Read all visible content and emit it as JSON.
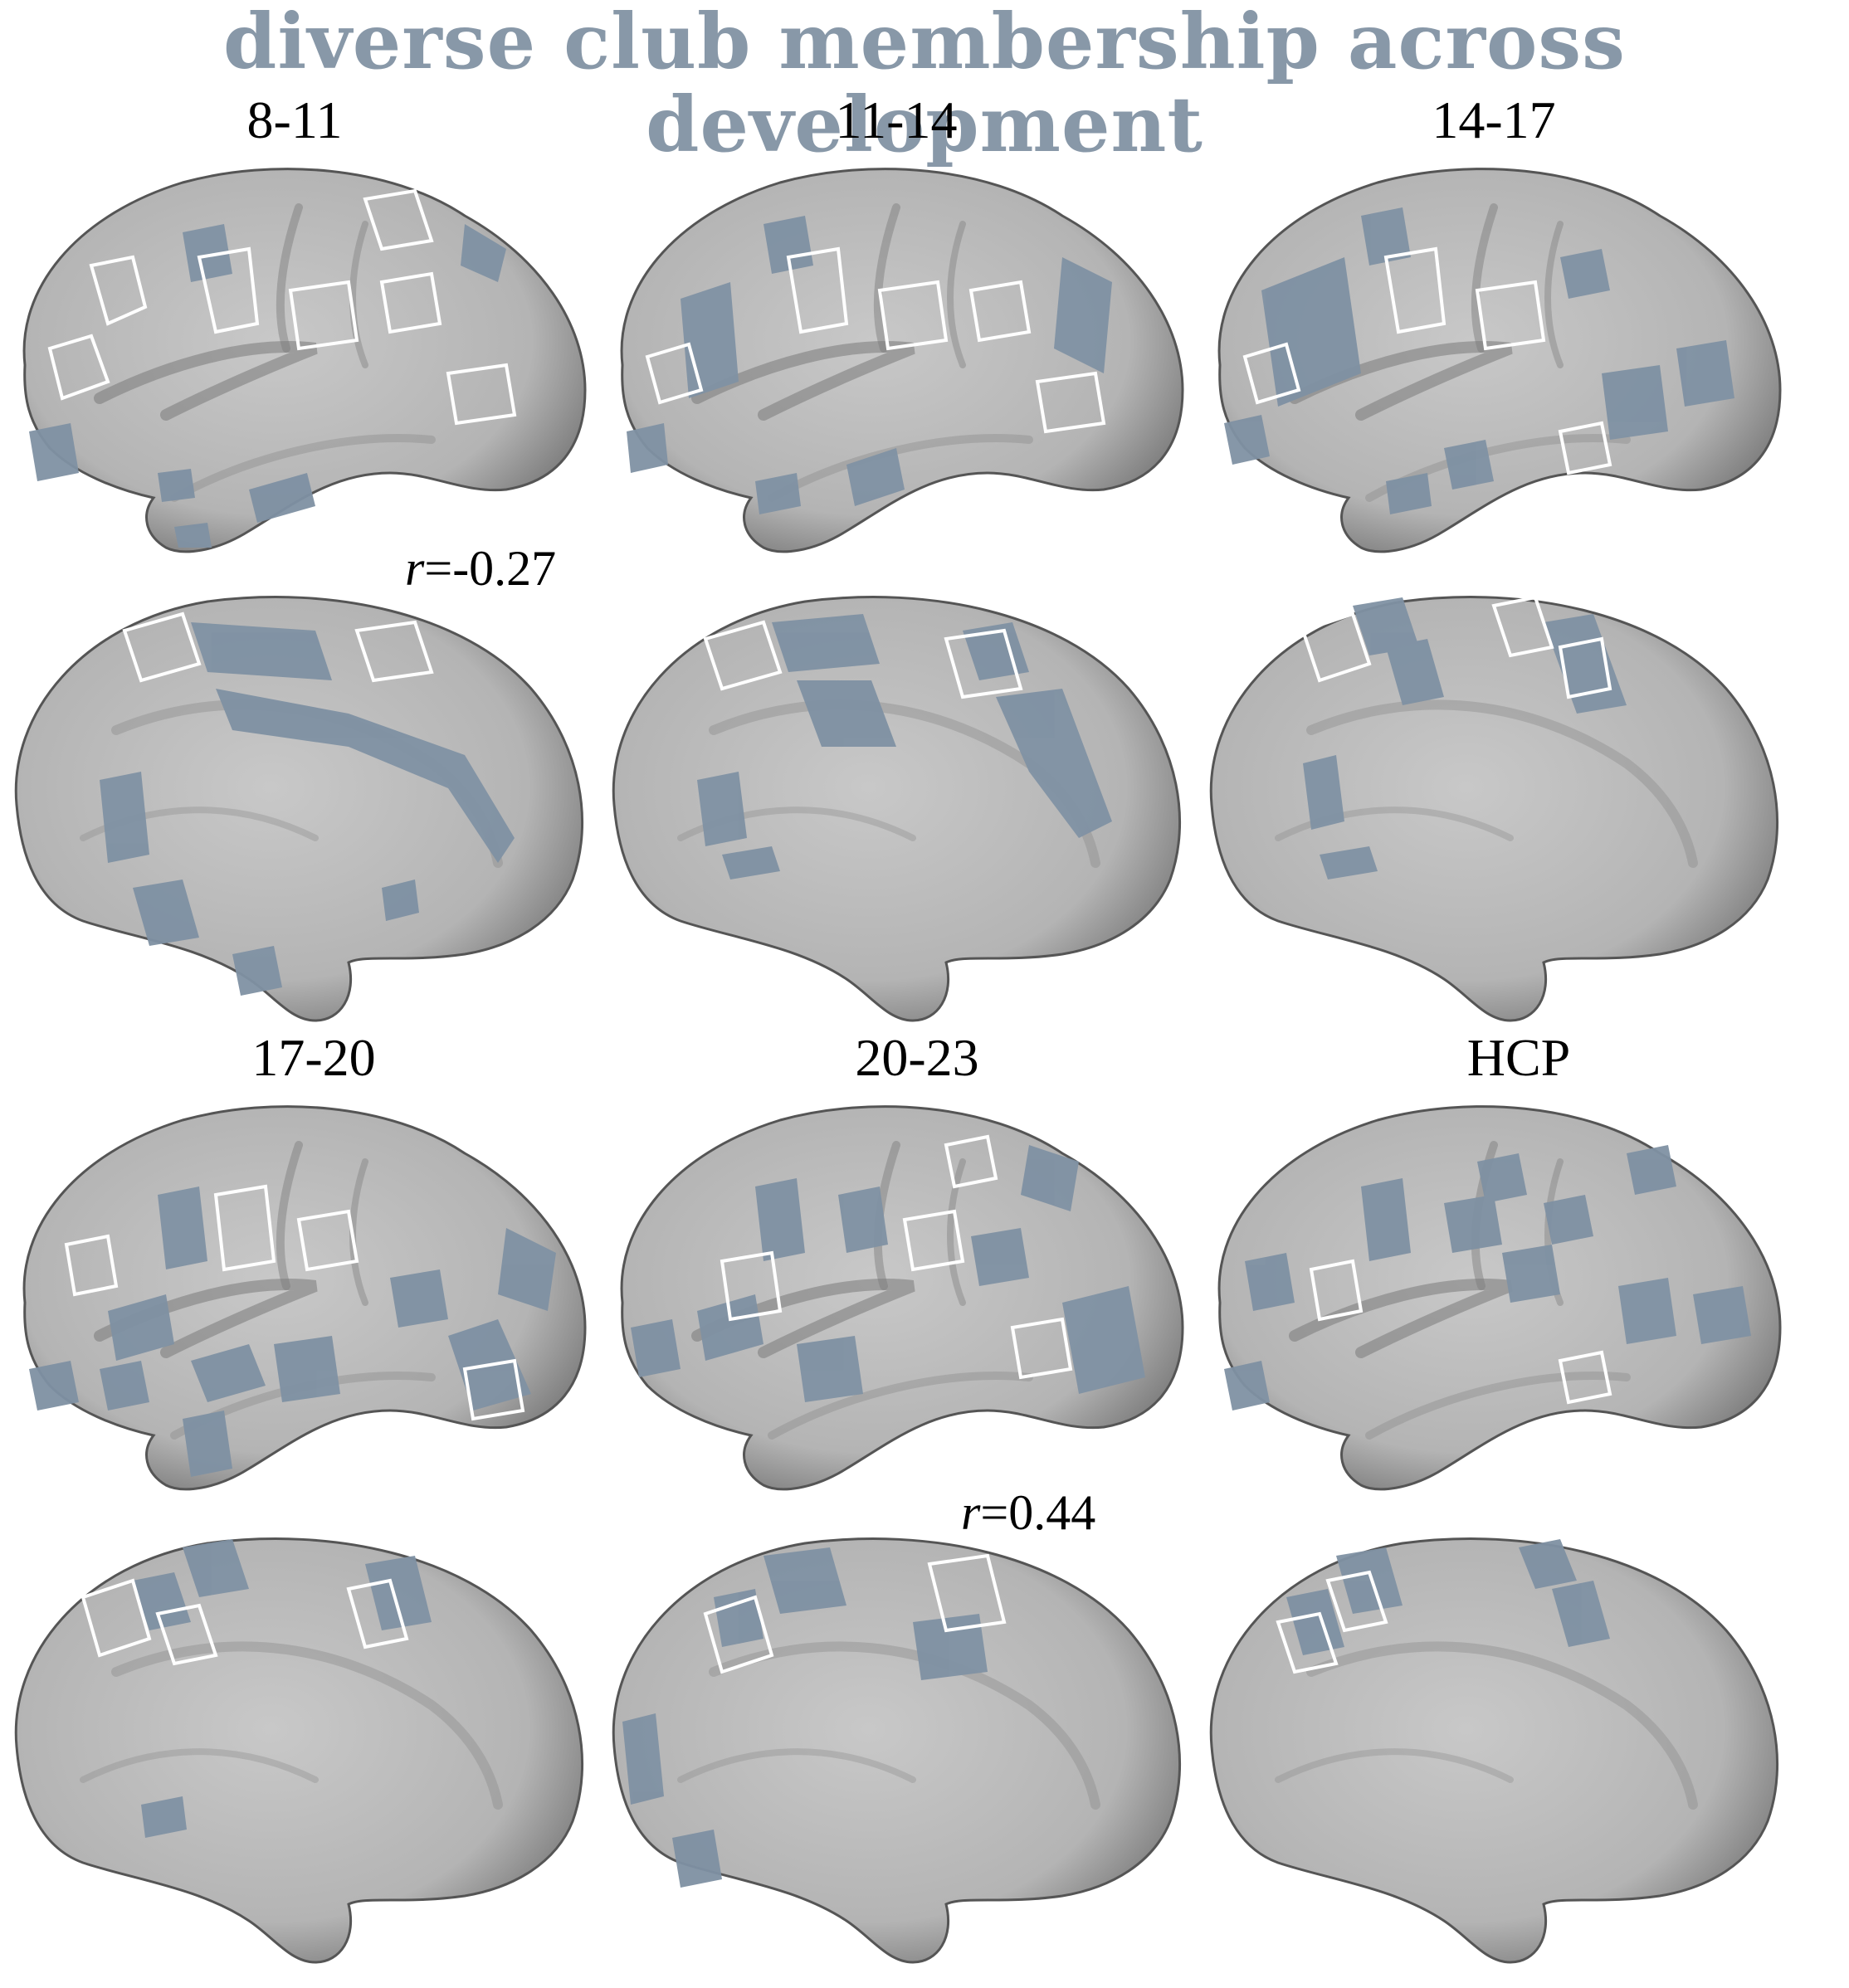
{
  "title": "diverse club membership across development",
  "colors": {
    "title": "#8898a8",
    "cortex": "#bebebe",
    "cortex_shadow": "#6e6e6e",
    "region_fill": "#7f91a3",
    "region_outline": "#ffffff"
  },
  "panels": [
    {
      "label": "8-11"
    },
    {
      "label": "11-14"
    },
    {
      "label": "14-17"
    },
    {
      "label": "17-20"
    },
    {
      "label": "20-23"
    },
    {
      "label": "HCP"
    }
  ],
  "annotations": [
    {
      "r_symbol": "r",
      "value": "=-0.27"
    },
    {
      "r_symbol": "r",
      "value": "=0.44"
    }
  ]
}
